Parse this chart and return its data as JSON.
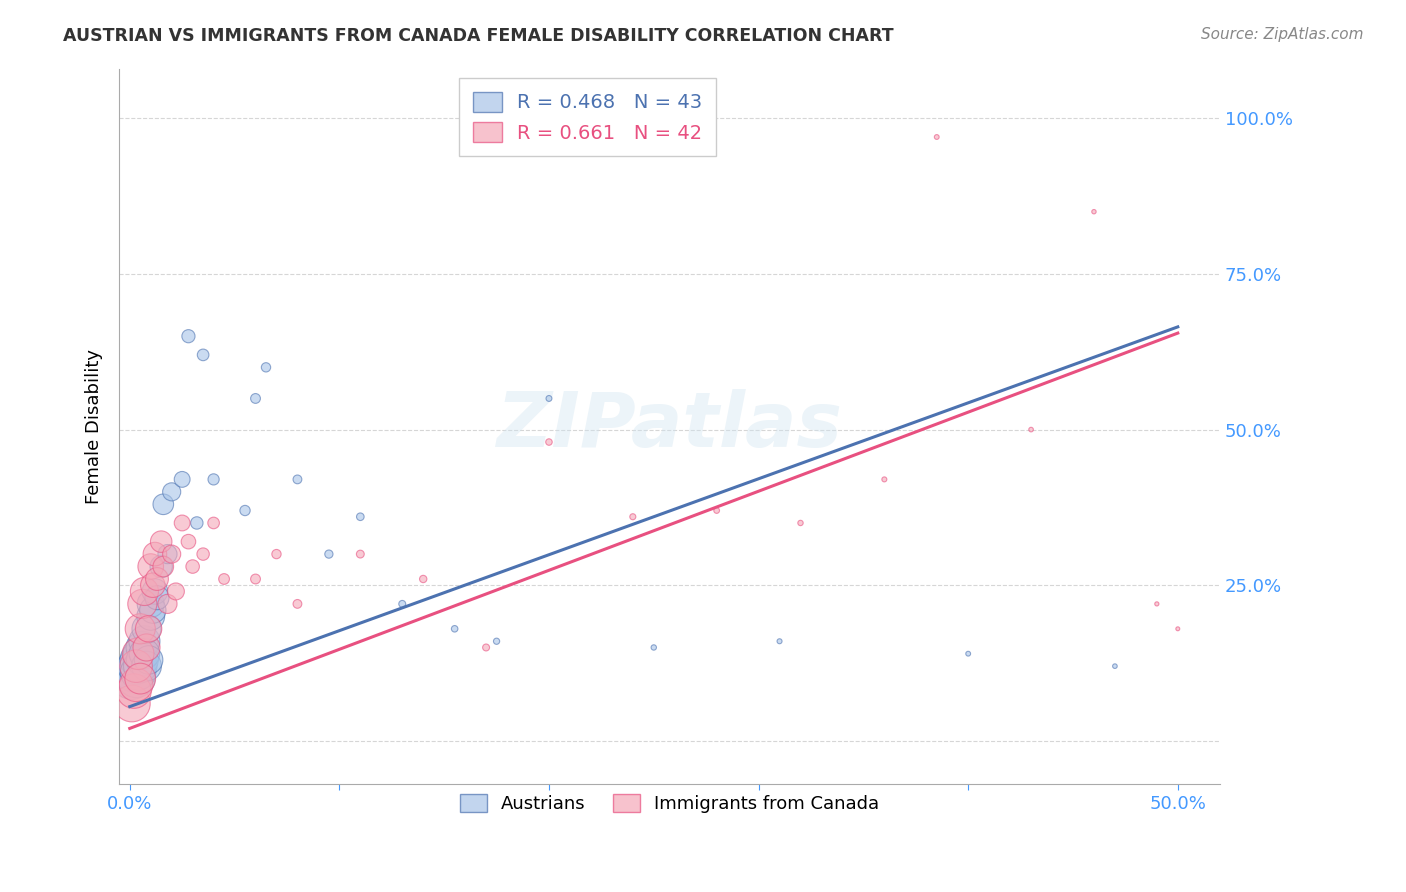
{
  "title": "AUSTRIAN VS IMMIGRANTS FROM CANADA FEMALE DISABILITY CORRELATION CHART",
  "source": "Source: ZipAtlas.com",
  "ylabel": "Female Disability",
  "xlim": [
    -0.005,
    0.52
  ],
  "ylim": [
    -0.07,
    1.08
  ],
  "blue_color": "#A8C4E8",
  "pink_color": "#F4A8B8",
  "blue_line_color": "#4C72B0",
  "pink_line_color": "#E85080",
  "right_axis_color": "#4499FF",
  "x_tick_color": "#4499FF",
  "legend_label_blue": "Austrians",
  "legend_label_pink": "Immigrants from Canada",
  "R_blue": 0.468,
  "N_blue": 43,
  "R_pink": 0.661,
  "N_pink": 42,
  "watermark": "ZIPatlas",
  "blue_line_x0": 0.0,
  "blue_line_y0": 0.055,
  "blue_line_x1": 0.5,
  "blue_line_y1": 0.665,
  "pink_line_x0": 0.0,
  "pink_line_y0": 0.02,
  "pink_line_x1": 0.5,
  "pink_line_y1": 0.655,
  "blue_scatter_x": [
    0.001,
    0.002,
    0.003,
    0.003,
    0.004,
    0.004,
    0.005,
    0.005,
    0.006,
    0.006,
    0.007,
    0.007,
    0.008,
    0.008,
    0.009,
    0.01,
    0.01,
    0.011,
    0.012,
    0.013,
    0.015,
    0.016,
    0.018,
    0.02,
    0.025,
    0.028,
    0.032,
    0.035,
    0.04,
    0.055,
    0.06,
    0.065,
    0.08,
    0.095,
    0.11,
    0.13,
    0.155,
    0.175,
    0.2,
    0.25,
    0.31,
    0.4,
    0.47
  ],
  "blue_scatter_y": [
    0.1,
    0.11,
    0.1,
    0.12,
    0.13,
    0.11,
    0.14,
    0.12,
    0.15,
    0.13,
    0.16,
    0.14,
    0.12,
    0.18,
    0.13,
    0.2,
    0.22,
    0.21,
    0.24,
    0.23,
    0.28,
    0.38,
    0.3,
    0.4,
    0.42,
    0.65,
    0.35,
    0.62,
    0.42,
    0.37,
    0.55,
    0.6,
    0.42,
    0.3,
    0.36,
    0.22,
    0.18,
    0.16,
    0.55,
    0.15,
    0.16,
    0.14,
    0.12
  ],
  "blue_scatter_size": [
    900,
    800,
    750,
    700,
    680,
    650,
    600,
    580,
    550,
    530,
    500,
    480,
    460,
    440,
    420,
    400,
    380,
    360,
    340,
    300,
    260,
    220,
    190,
    170,
    130,
    90,
    80,
    70,
    65,
    55,
    50,
    45,
    40,
    35,
    30,
    25,
    22,
    20,
    18,
    15,
    13,
    12,
    11
  ],
  "pink_scatter_x": [
    0.001,
    0.002,
    0.003,
    0.003,
    0.004,
    0.005,
    0.005,
    0.006,
    0.007,
    0.008,
    0.009,
    0.01,
    0.011,
    0.012,
    0.013,
    0.015,
    0.016,
    0.018,
    0.02,
    0.022,
    0.025,
    0.028,
    0.03,
    0.035,
    0.04,
    0.045,
    0.06,
    0.07,
    0.08,
    0.11,
    0.14,
    0.17,
    0.2,
    0.24,
    0.28,
    0.32,
    0.36,
    0.385,
    0.43,
    0.46,
    0.49,
    0.5
  ],
  "pink_scatter_y": [
    0.06,
    0.08,
    0.09,
    0.12,
    0.14,
    0.1,
    0.18,
    0.22,
    0.24,
    0.15,
    0.18,
    0.28,
    0.25,
    0.3,
    0.26,
    0.32,
    0.28,
    0.22,
    0.3,
    0.24,
    0.35,
    0.32,
    0.28,
    0.3,
    0.35,
    0.26,
    0.26,
    0.3,
    0.22,
    0.3,
    0.26,
    0.15,
    0.48,
    0.36,
    0.37,
    0.35,
    0.42,
    0.97,
    0.5,
    0.85,
    0.22,
    0.18
  ],
  "pink_scatter_size": [
    700,
    620,
    580,
    550,
    520,
    490,
    470,
    440,
    410,
    380,
    360,
    340,
    310,
    290,
    270,
    240,
    220,
    190,
    170,
    150,
    130,
    110,
    95,
    80,
    70,
    60,
    50,
    45,
    40,
    32,
    28,
    25,
    22,
    19,
    17,
    15,
    13,
    12,
    11,
    10,
    9,
    8
  ]
}
